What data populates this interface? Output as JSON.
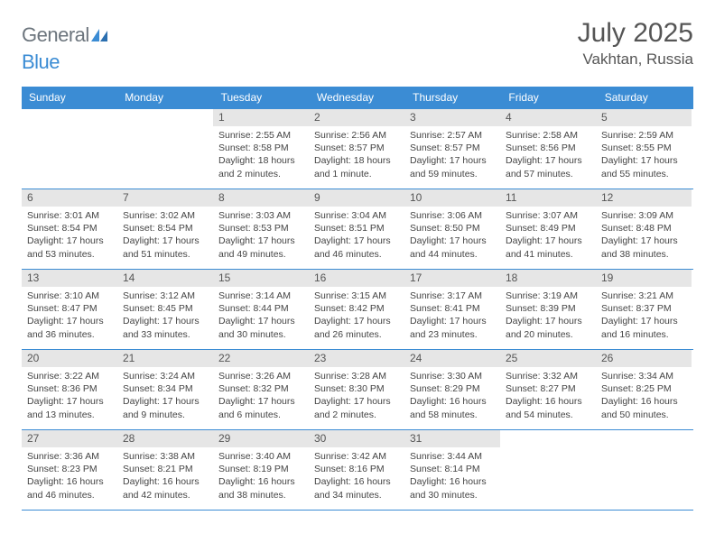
{
  "brand": {
    "word1": "General",
    "word2": "Blue"
  },
  "title": {
    "month": "July 2025",
    "location": "Vakhtan, Russia"
  },
  "colors": {
    "header_bg": "#3b8cd4",
    "header_text": "#ffffff",
    "daynum_bg": "#e6e6e6",
    "divider": "#3b8cd4",
    "body_text": "#444444",
    "title_text": "#555555",
    "background": "#ffffff"
  },
  "fonts": {
    "title_size": 30,
    "location_size": 17,
    "dow_size": 12,
    "body_size": 10.5
  },
  "dow": [
    "Sunday",
    "Monday",
    "Tuesday",
    "Wednesday",
    "Thursday",
    "Friday",
    "Saturday"
  ],
  "weeks": [
    [
      {
        "empty": true
      },
      {
        "empty": true
      },
      {
        "num": "1",
        "sunrise": "Sunrise: 2:55 AM",
        "sunset": "Sunset: 8:58 PM",
        "daylight": "Daylight: 18 hours and 2 minutes."
      },
      {
        "num": "2",
        "sunrise": "Sunrise: 2:56 AM",
        "sunset": "Sunset: 8:57 PM",
        "daylight": "Daylight: 18 hours and 1 minute."
      },
      {
        "num": "3",
        "sunrise": "Sunrise: 2:57 AM",
        "sunset": "Sunset: 8:57 PM",
        "daylight": "Daylight: 17 hours and 59 minutes."
      },
      {
        "num": "4",
        "sunrise": "Sunrise: 2:58 AM",
        "sunset": "Sunset: 8:56 PM",
        "daylight": "Daylight: 17 hours and 57 minutes."
      },
      {
        "num": "5",
        "sunrise": "Sunrise: 2:59 AM",
        "sunset": "Sunset: 8:55 PM",
        "daylight": "Daylight: 17 hours and 55 minutes."
      }
    ],
    [
      {
        "num": "6",
        "sunrise": "Sunrise: 3:01 AM",
        "sunset": "Sunset: 8:54 PM",
        "daylight": "Daylight: 17 hours and 53 minutes."
      },
      {
        "num": "7",
        "sunrise": "Sunrise: 3:02 AM",
        "sunset": "Sunset: 8:54 PM",
        "daylight": "Daylight: 17 hours and 51 minutes."
      },
      {
        "num": "8",
        "sunrise": "Sunrise: 3:03 AM",
        "sunset": "Sunset: 8:53 PM",
        "daylight": "Daylight: 17 hours and 49 minutes."
      },
      {
        "num": "9",
        "sunrise": "Sunrise: 3:04 AM",
        "sunset": "Sunset: 8:51 PM",
        "daylight": "Daylight: 17 hours and 46 minutes."
      },
      {
        "num": "10",
        "sunrise": "Sunrise: 3:06 AM",
        "sunset": "Sunset: 8:50 PM",
        "daylight": "Daylight: 17 hours and 44 minutes."
      },
      {
        "num": "11",
        "sunrise": "Sunrise: 3:07 AM",
        "sunset": "Sunset: 8:49 PM",
        "daylight": "Daylight: 17 hours and 41 minutes."
      },
      {
        "num": "12",
        "sunrise": "Sunrise: 3:09 AM",
        "sunset": "Sunset: 8:48 PM",
        "daylight": "Daylight: 17 hours and 38 minutes."
      }
    ],
    [
      {
        "num": "13",
        "sunrise": "Sunrise: 3:10 AM",
        "sunset": "Sunset: 8:47 PM",
        "daylight": "Daylight: 17 hours and 36 minutes."
      },
      {
        "num": "14",
        "sunrise": "Sunrise: 3:12 AM",
        "sunset": "Sunset: 8:45 PM",
        "daylight": "Daylight: 17 hours and 33 minutes."
      },
      {
        "num": "15",
        "sunrise": "Sunrise: 3:14 AM",
        "sunset": "Sunset: 8:44 PM",
        "daylight": "Daylight: 17 hours and 30 minutes."
      },
      {
        "num": "16",
        "sunrise": "Sunrise: 3:15 AM",
        "sunset": "Sunset: 8:42 PM",
        "daylight": "Daylight: 17 hours and 26 minutes."
      },
      {
        "num": "17",
        "sunrise": "Sunrise: 3:17 AM",
        "sunset": "Sunset: 8:41 PM",
        "daylight": "Daylight: 17 hours and 23 minutes."
      },
      {
        "num": "18",
        "sunrise": "Sunrise: 3:19 AM",
        "sunset": "Sunset: 8:39 PM",
        "daylight": "Daylight: 17 hours and 20 minutes."
      },
      {
        "num": "19",
        "sunrise": "Sunrise: 3:21 AM",
        "sunset": "Sunset: 8:37 PM",
        "daylight": "Daylight: 17 hours and 16 minutes."
      }
    ],
    [
      {
        "num": "20",
        "sunrise": "Sunrise: 3:22 AM",
        "sunset": "Sunset: 8:36 PM",
        "daylight": "Daylight: 17 hours and 13 minutes."
      },
      {
        "num": "21",
        "sunrise": "Sunrise: 3:24 AM",
        "sunset": "Sunset: 8:34 PM",
        "daylight": "Daylight: 17 hours and 9 minutes."
      },
      {
        "num": "22",
        "sunrise": "Sunrise: 3:26 AM",
        "sunset": "Sunset: 8:32 PM",
        "daylight": "Daylight: 17 hours and 6 minutes."
      },
      {
        "num": "23",
        "sunrise": "Sunrise: 3:28 AM",
        "sunset": "Sunset: 8:30 PM",
        "daylight": "Daylight: 17 hours and 2 minutes."
      },
      {
        "num": "24",
        "sunrise": "Sunrise: 3:30 AM",
        "sunset": "Sunset: 8:29 PM",
        "daylight": "Daylight: 16 hours and 58 minutes."
      },
      {
        "num": "25",
        "sunrise": "Sunrise: 3:32 AM",
        "sunset": "Sunset: 8:27 PM",
        "daylight": "Daylight: 16 hours and 54 minutes."
      },
      {
        "num": "26",
        "sunrise": "Sunrise: 3:34 AM",
        "sunset": "Sunset: 8:25 PM",
        "daylight": "Daylight: 16 hours and 50 minutes."
      }
    ],
    [
      {
        "num": "27",
        "sunrise": "Sunrise: 3:36 AM",
        "sunset": "Sunset: 8:23 PM",
        "daylight": "Daylight: 16 hours and 46 minutes."
      },
      {
        "num": "28",
        "sunrise": "Sunrise: 3:38 AM",
        "sunset": "Sunset: 8:21 PM",
        "daylight": "Daylight: 16 hours and 42 minutes."
      },
      {
        "num": "29",
        "sunrise": "Sunrise: 3:40 AM",
        "sunset": "Sunset: 8:19 PM",
        "daylight": "Daylight: 16 hours and 38 minutes."
      },
      {
        "num": "30",
        "sunrise": "Sunrise: 3:42 AM",
        "sunset": "Sunset: 8:16 PM",
        "daylight": "Daylight: 16 hours and 34 minutes."
      },
      {
        "num": "31",
        "sunrise": "Sunrise: 3:44 AM",
        "sunset": "Sunset: 8:14 PM",
        "daylight": "Daylight: 16 hours and 30 minutes."
      },
      {
        "empty": true
      },
      {
        "empty": true
      }
    ]
  ]
}
